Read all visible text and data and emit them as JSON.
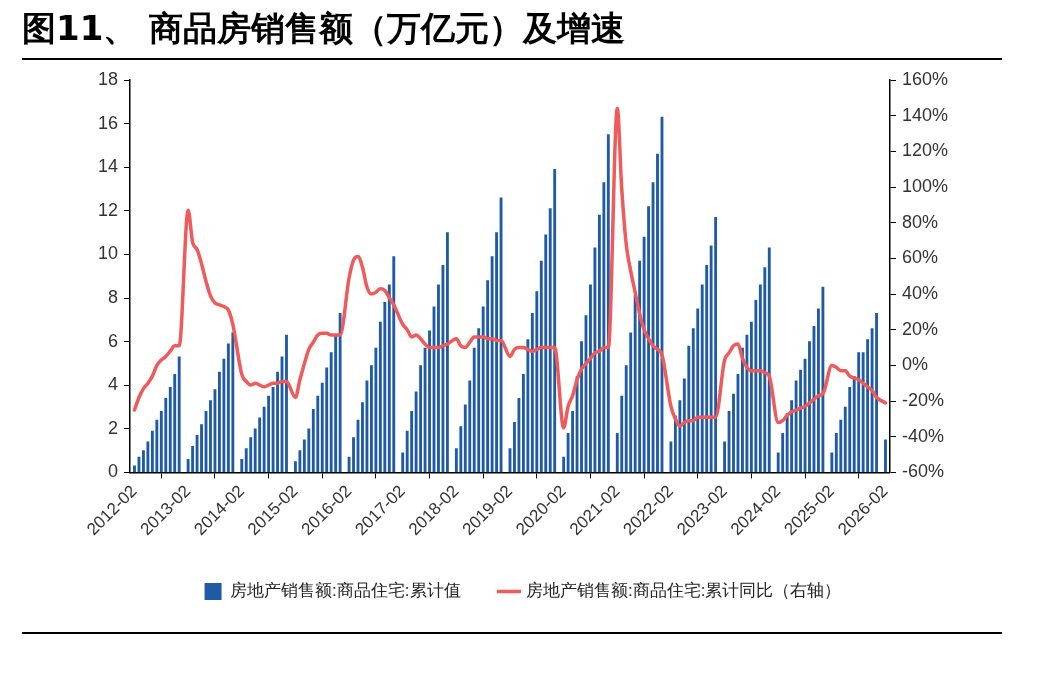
{
  "chart_data": {
    "type": "bar",
    "title": "图11、 商品房销售额（万亿元）及增速",
    "x": [
      "2012-02",
      "2012-03",
      "2012-04",
      "2012-05",
      "2012-06",
      "2012-07",
      "2012-08",
      "2012-09",
      "2012-10",
      "2012-11",
      "2012-12",
      "2013-02",
      "2013-03",
      "2013-04",
      "2013-05",
      "2013-06",
      "2013-07",
      "2013-08",
      "2013-09",
      "2013-10",
      "2013-11",
      "2013-12",
      "2014-02",
      "2014-03",
      "2014-04",
      "2014-05",
      "2014-06",
      "2014-07",
      "2014-08",
      "2014-09",
      "2014-10",
      "2014-11",
      "2014-12",
      "2015-02",
      "2015-03",
      "2015-04",
      "2015-05",
      "2015-06",
      "2015-07",
      "2015-08",
      "2015-09",
      "2015-10",
      "2015-11",
      "2015-12",
      "2016-02",
      "2016-03",
      "2016-04",
      "2016-05",
      "2016-06",
      "2016-07",
      "2016-08",
      "2016-09",
      "2016-10",
      "2016-11",
      "2016-12",
      "2017-02",
      "2017-03",
      "2017-04",
      "2017-05",
      "2017-06",
      "2017-07",
      "2017-08",
      "2017-09",
      "2017-10",
      "2017-11",
      "2017-12",
      "2018-02",
      "2018-03",
      "2018-04",
      "2018-05",
      "2018-06",
      "2018-07",
      "2018-08",
      "2018-09",
      "2018-10",
      "2018-11",
      "2018-12",
      "2019-02",
      "2019-03",
      "2019-04",
      "2019-05",
      "2019-06",
      "2019-07",
      "2019-08",
      "2019-09",
      "2019-10",
      "2019-11",
      "2019-12",
      "2020-02",
      "2020-03",
      "2020-04",
      "2020-05",
      "2020-06",
      "2020-07",
      "2020-08",
      "2020-09",
      "2020-10",
      "2020-11",
      "2020-12",
      "2021-02",
      "2021-03",
      "2021-04",
      "2021-05",
      "2021-06",
      "2021-07",
      "2021-08",
      "2021-09",
      "2021-10",
      "2021-11",
      "2021-12",
      "2022-02",
      "2022-03",
      "2022-04",
      "2022-05",
      "2022-06",
      "2022-07",
      "2022-08",
      "2022-09",
      "2022-10",
      "2022-11",
      "2022-12",
      "2023-02",
      "2023-03",
      "2023-04",
      "2023-05",
      "2023-06",
      "2023-07",
      "2023-08",
      "2023-09",
      "2023-10",
      "2023-11",
      "2023-12",
      "2024-02",
      "2024-03",
      "2024-04",
      "2024-05",
      "2024-06",
      "2024-07",
      "2024-08",
      "2024-09",
      "2024-10",
      "2024-11",
      "2024-12",
      "2025-02",
      "2025-03",
      "2025-04",
      "2025-05",
      "2025-06",
      "2025-07",
      "2025-08",
      "2025-09",
      "2025-10",
      "2025-11",
      "2025-12",
      "2026-02"
    ],
    "series": [
      {
        "name": "房地产销售额:商品住宅:累计值",
        "color": "#1f5aa6",
        "values": [
          0.3,
          0.7,
          1.0,
          1.4,
          1.9,
          2.4,
          2.8,
          3.4,
          3.9,
          4.5,
          5.3,
          0.6,
          1.2,
          1.7,
          2.2,
          2.8,
          3.3,
          3.8,
          4.6,
          5.2,
          5.9,
          6.4,
          0.6,
          1.1,
          1.6,
          2.0,
          2.5,
          3.0,
          3.5,
          3.9,
          4.6,
          5.3,
          6.3,
          0.5,
          1.0,
          1.5,
          2.0,
          2.9,
          3.5,
          4.1,
          4.8,
          5.5,
          6.3,
          7.3,
          0.7,
          1.6,
          2.4,
          3.2,
          4.2,
          4.9,
          5.7,
          6.9,
          7.8,
          8.6,
          9.9,
          0.9,
          1.9,
          2.8,
          3.7,
          4.9,
          5.7,
          6.5,
          7.6,
          8.6,
          9.5,
          11.0,
          1.1,
          2.1,
          3.1,
          4.2,
          5.7,
          6.6,
          7.6,
          8.8,
          9.9,
          11.0,
          12.6,
          1.1,
          2.3,
          3.4,
          4.5,
          6.1,
          7.3,
          8.3,
          9.7,
          10.9,
          12.1,
          13.9,
          0.7,
          1.8,
          2.8,
          4.4,
          6.0,
          7.2,
          8.6,
          10.3,
          11.8,
          13.3,
          15.5,
          1.8,
          3.5,
          4.9,
          6.4,
          8.1,
          9.7,
          10.8,
          12.2,
          13.3,
          14.6,
          16.3,
          1.4,
          2.6,
          3.3,
          4.3,
          5.8,
          6.6,
          7.5,
          8.6,
          9.5,
          10.4,
          11.7,
          1.4,
          2.8,
          3.6,
          4.5,
          5.7,
          6.3,
          6.9,
          7.9,
          8.6,
          9.4,
          10.3,
          0.9,
          1.8,
          2.7,
          3.3,
          4.2,
          4.7,
          5.2,
          6.0,
          6.7,
          7.5,
          8.5,
          0.9,
          1.8,
          2.4,
          3.0,
          3.9,
          4.4,
          5.5,
          5.5,
          6.1,
          6.6,
          7.3,
          1.5
        ]
      },
      {
        "name": "房地产销售额:商品住宅:累计同比（右轴）",
        "type": "line",
        "axis": "y2",
        "color": "#f05a5a",
        "line_style": "solid",
        "values": [
          -25,
          -18,
          -13,
          -10,
          -6,
          0,
          3,
          5,
          8,
          11,
          11,
          87,
          69,
          65,
          57,
          47,
          39,
          35,
          34,
          33,
          31,
          23,
          -5,
          -9,
          -11,
          -10,
          -11,
          -12,
          -11,
          -10,
          -10,
          -9,
          -9,
          -18,
          -8,
          1,
          9,
          13,
          17,
          18,
          18,
          17,
          17,
          17,
          49,
          59,
          61,
          55,
          44,
          40,
          41,
          43,
          42,
          38,
          34,
          23,
          20,
          16,
          17,
          15,
          12,
          10,
          10,
          10,
          11,
          12,
          15,
          11,
          10,
          13,
          16,
          16,
          16,
          15,
          15,
          14,
          14,
          5,
          9,
          10,
          10,
          9,
          8,
          9,
          10,
          10,
          10,
          10,
          -35,
          -23,
          -17,
          -8,
          -2,
          1,
          4,
          7,
          8,
          10,
          10,
          144,
          99,
          68,
          53,
          41,
          29,
          20,
          15,
          11,
          9,
          6,
          -23,
          -30,
          -34,
          -32,
          -31,
          -31,
          -29,
          -29,
          -29,
          -29,
          -29,
          3,
          7,
          11,
          12,
          4,
          -1,
          -3,
          -3,
          -3,
          -4,
          -6,
          -32,
          -31,
          -28,
          -26,
          -25,
          -24,
          -23,
          -21,
          -19,
          -17,
          -16,
          0,
          -1,
          -3,
          -3,
          -6,
          -7,
          -8,
          -10,
          -12,
          -14,
          -18,
          -21
        ]
      }
    ],
    "xlim": [
      "2012-01",
      "2026-03"
    ],
    "xticks": [
      "2012-02",
      "2013-02",
      "2014-02",
      "2015-02",
      "2016-02",
      "2017-02",
      "2018-02",
      "2019-02",
      "2020-02",
      "2021-02",
      "2022-02",
      "2023-02",
      "2024-02",
      "2025-02",
      "2026-02"
    ],
    "ylim": [
      0,
      18
    ],
    "yticks": [
      0,
      2,
      4,
      6,
      8,
      10,
      12,
      14,
      16,
      18
    ],
    "y2lim": [
      -60,
      160
    ],
    "y2ticks": [
      {
        "value": -60,
        "label": "-60%"
      },
      {
        "value": -40,
        "label": "-40%"
      },
      {
        "value": -20,
        "label": "-20%"
      },
      {
        "value": 0,
        "label": "0%"
      },
      {
        "value": 20,
        "label": "20%"
      },
      {
        "value": 40,
        "label": "40%"
      },
      {
        "value": 60,
        "label": "60%"
      },
      {
        "value": 80,
        "label": "80%"
      },
      {
        "value": 100,
        "label": "100%"
      },
      {
        "value": 120,
        "label": "120%"
      },
      {
        "value": 140,
        "label": "140%"
      },
      {
        "value": 160,
        "label": "160%"
      }
    ],
    "grid": false,
    "legend": "bottom"
  }
}
